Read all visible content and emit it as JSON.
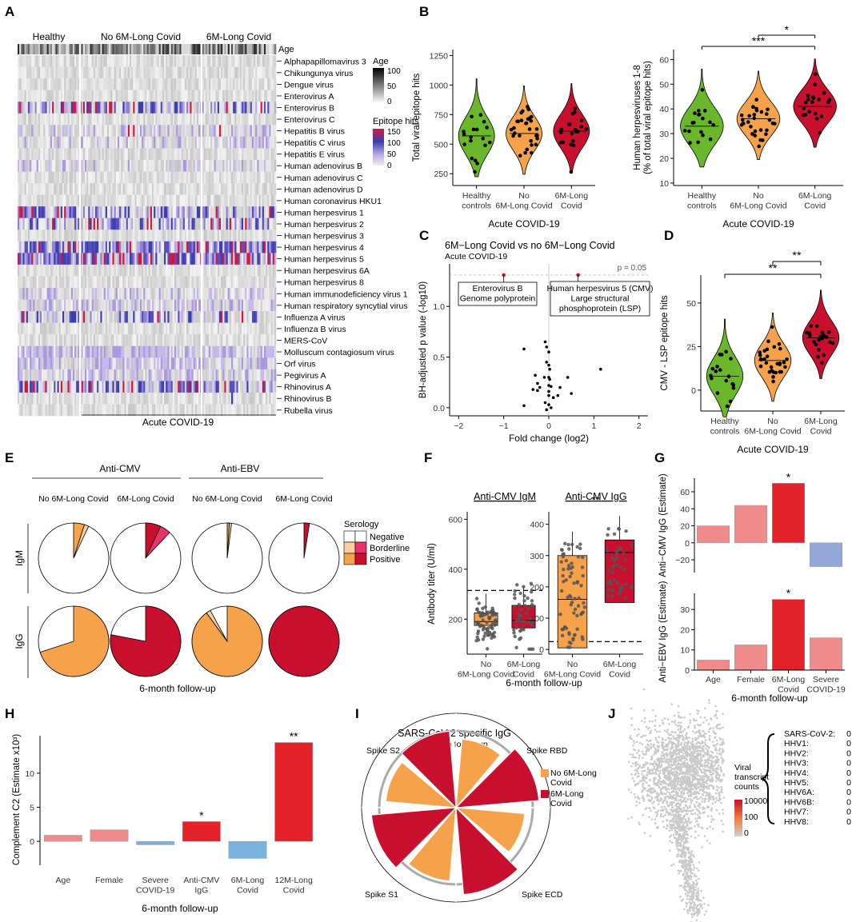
{
  "colors": {
    "green": "#6ab72c",
    "orange": "#f5a24a",
    "red": "#c8102e",
    "brightred": "#e4222a",
    "pink": "#f08b8b",
    "lightblue": "#93a8d8",
    "blue": "#7ab3e0",
    "darkred": "#c8102e",
    "pinkish": "#e7336a"
  },
  "panels": {
    "A": "A",
    "B": "B",
    "C": "C",
    "D": "D",
    "E": "E",
    "F": "F",
    "G": "G",
    "H": "H",
    "I": "I",
    "J": "J"
  },
  "chart_data": [
    {
      "id": "A",
      "type": "heatmap",
      "group_labels": [
        "Healthy",
        "No 6M-Long Covid",
        "6M-Long Covid"
      ],
      "age_label": "Age",
      "bottom_label": "Acute COVID-19",
      "rows": [
        "Alphapapillomavirus 3",
        "Chikungunya virus",
        "Dengue virus",
        "Enterovirus A",
        "Enterovirus B",
        "Enterovirus C",
        "Hepatitis B virus",
        "Hepatitis C virus",
        "Hepatitis E virus",
        "Human adenovirus B",
        "Human adenovirus C",
        "Human adenovirus D",
        "Human coronavirus HKU1",
        "Human herpesvirus 1",
        "Human herpesvirus 2",
        "Human herpesvirus 3",
        "Human herpesvirus 4",
        "Human herpesvirus 5",
        "Human herpesvirus 6A",
        "Human herpesvirus 8",
        "Human immunodeficiency virus 1",
        "Human respiratory syncytial virus",
        "Influenza A virus",
        "Influenza B virus",
        "MERS-CoV",
        "Molluscum contagiosum virus",
        "Orf virus",
        "Pegivirus A",
        "Rhinovirus A",
        "Rhinovirus B",
        "Rubella virus"
      ],
      "legend_age": {
        "title": "Age",
        "ticks": [
          "100",
          "50",
          "0"
        ]
      },
      "legend_epitope": {
        "title": "Epitope hits",
        "ticks": [
          "150",
          "100",
          "50",
          "0"
        ]
      }
    },
    {
      "id": "B1",
      "type": "violin",
      "ylabel": "Total viral epitope hits",
      "yticks": [
        "1250",
        "1000",
        "750",
        "500",
        "250"
      ],
      "ylim": [
        150,
        1300
      ],
      "categories": [
        "Healthy\ncontrols",
        "No\n6M-Long Covid",
        "6M-Long\nCovid"
      ],
      "xlabel": "Acute COVID-19",
      "medians": [
        570,
        590,
        610
      ]
    },
    {
      "id": "B2",
      "type": "violin",
      "ylabel": "Human herpesviruses 1-8\n(% of total viral epitope hits)",
      "yticks": [
        "60",
        "50",
        "40",
        "30",
        "20",
        "10"
      ],
      "ylim": [
        9,
        64
      ],
      "categories": [
        "Healthy\ncontrols",
        "No\n6M-Long Covid",
        "6M-Long\nCovid"
      ],
      "xlabel": "Acute COVID-19",
      "significance": [
        "***",
        "*"
      ],
      "medians": [
        33,
        36,
        41
      ]
    },
    {
      "id": "C",
      "type": "scatter",
      "title": "6M−Long Covid vs no 6M−Long Covid",
      "subtitle": "Acute COVID-19",
      "xlabel": "Fold change (log2)",
      "ylabel": "BH-adjusted p value (-log10)",
      "xticks": [
        "−2",
        "−1",
        "0",
        "1",
        "2"
      ],
      "yticks": [
        "0.0",
        "0.5",
        "1.0"
      ],
      "xlim": [
        -2.2,
        2.2
      ],
      "ylim": [
        -0.08,
        1.42
      ],
      "threshold_label": "p = 0.05",
      "annotations": [
        "Enterovirus B\nGenome polyprotein",
        "Human herpesvirus 5 (CMV)\nLarge structural\nphosphoprotein (LSP)"
      ],
      "points": [
        [
          -1.0,
          1.31
        ],
        [
          0.65,
          1.31
        ],
        [
          -0.55,
          0.58
        ],
        [
          -0.08,
          0.65
        ],
        [
          -0.05,
          0.6
        ],
        [
          0.0,
          0.55
        ],
        [
          -0.05,
          0.45
        ],
        [
          0.0,
          0.42
        ],
        [
          0.02,
          0.38
        ],
        [
          1.15,
          0.38
        ],
        [
          -0.3,
          0.32
        ],
        [
          -0.1,
          0.3
        ],
        [
          0.0,
          0.3
        ],
        [
          0.42,
          0.3
        ],
        [
          0.02,
          0.28
        ],
        [
          -0.25,
          0.24
        ],
        [
          0.0,
          0.22
        ],
        [
          0.05,
          0.21
        ],
        [
          -0.2,
          0.2
        ],
        [
          -0.35,
          0.18
        ],
        [
          -0.25,
          0.17
        ],
        [
          0.0,
          0.16
        ],
        [
          0.25,
          0.2
        ],
        [
          0.0,
          0.12
        ],
        [
          0.5,
          0.14
        ],
        [
          0.1,
          0.1
        ],
        [
          0.2,
          0.12
        ],
        [
          -0.08,
          0.05
        ],
        [
          0.0,
          0.03
        ],
        [
          -0.55,
          0.02
        ],
        [
          -0.05,
          -0.02
        ],
        [
          0.05,
          0.0
        ]
      ]
    },
    {
      "id": "D",
      "type": "violin",
      "ylabel": "CMV - LSP epitope hits",
      "yticks": [
        "50",
        "25",
        "0"
      ],
      "ylim": [
        -12,
        66
      ],
      "categories": [
        "Healthy\ncontrols",
        "No\n6M-Long Covid",
        "6M-Long\nCovid"
      ],
      "xlabel": "Acute COVID-19",
      "significance": [
        "**",
        "**"
      ],
      "medians": [
        8,
        17,
        30
      ]
    },
    {
      "id": "E",
      "type": "pie",
      "headers": [
        "Anti-CMV",
        "Anti-EBV"
      ],
      "subheaders": [
        "No 6M-Long Covid",
        "6M-Long Covid",
        "No 6M-Long Covid",
        "6M-Long Covid"
      ],
      "row_labels": [
        "IgM",
        "IgG"
      ],
      "xlabel": "6-month follow-up",
      "legend_title": "Serology",
      "legend_items": [
        "Negative",
        "Borderline",
        "Positive"
      ],
      "pies": [
        {
          "positive": 0.05,
          "borderline": 0.02
        },
        {
          "positive": 0.07,
          "borderline": 0.05
        },
        {
          "positive": 0.01,
          "borderline": 0.01
        },
        {
          "positive": 0.025,
          "borderline": 0.0
        },
        {
          "positive": 0.7,
          "borderline": 0.0
        },
        {
          "positive": 0.78,
          "borderline": 0.0
        },
        {
          "positive": 0.9,
          "borderline": 0.02
        },
        {
          "positive": 1.0,
          "borderline": 0.0
        }
      ]
    },
    {
      "id": "F",
      "type": "box",
      "titles": [
        "Anti-CMV IgM",
        "Anti-CMV IgG"
      ],
      "ylabel": "Antibody titer (U/ml)",
      "xlabel": "6-month follow-up",
      "categories": [
        "No\n6M-Long Covid",
        "6M-Long\nCovid"
      ],
      "igm_yticks": [
        "600",
        "400",
        "200"
      ],
      "igg_yticks": [
        "400",
        "300",
        "200",
        "100",
        "0"
      ],
      "significance": "**",
      "igm": {
        "boxes": [
          [
            175,
            190,
            225
          ],
          [
            165,
            195,
            255
          ]
        ],
        "ylim": [
          60,
          630
        ],
        "cutoff": 315
      },
      "igg": {
        "boxes": [
          [
            5,
            160,
            300
          ],
          [
            150,
            310,
            350
          ]
        ],
        "ylim": [
          -15,
          440
        ],
        "cutoff": 25
      }
    },
    {
      "id": "G",
      "type": "bar",
      "ylabels": [
        "Anti−CMV IgG (Estimate)",
        "Anti−EBV IgG (Estimate)"
      ],
      "categories": [
        "Age",
        "Female",
        "6M-Long\nCovid",
        "Severe\nCOVID-19"
      ],
      "top_values": [
        20,
        44,
        70,
        -28
      ],
      "top_yticks": [
        "60",
        "40",
        "20",
        "0",
        "−20"
      ],
      "top_ylim": [
        -35,
        76
      ],
      "bottom_values": [
        5,
        12.5,
        35,
        16
      ],
      "bottom_yticks": [
        "30",
        "20",
        "10",
        "0"
      ],
      "bottom_ylim": [
        0,
        38
      ],
      "significance": "*",
      "xlabel": "6-month follow-up"
    },
    {
      "id": "H",
      "type": "bar",
      "ylabel": "Complement C2 (Estimate x10³)",
      "categories": [
        "Age",
        "Female",
        "Severe\nCOVID-19",
        "Anti-CMV\nIgG",
        "6M-Long\nCovid",
        "12M-Long\nCovid"
      ],
      "values": [
        0.9,
        1.7,
        -0.5,
        2.9,
        -2.5,
        14.5
      ],
      "yticks": [
        "10",
        "5",
        "0"
      ],
      "ylim": [
        -3.5,
        15.5
      ],
      "significance": [
        "*",
        "**"
      ],
      "xlabel": "6-month follow-up"
    },
    {
      "id": "I",
      "type": "radial-bar",
      "title": "SARS-CoV-2 specific IgG",
      "subtitle": "6-month follow-up",
      "labels": [
        "Spike RBD",
        "Spike ECD",
        "Spike S1",
        "Spike S2"
      ],
      "legend_items": [
        "No 6M-Long Covid",
        "6M-Long Covid"
      ]
    },
    {
      "id": "J",
      "type": "scatter-umap",
      "legend_title": "Viral\ntranscript\ncounts",
      "legend_ticks": [
        "10000",
        "100",
        "0"
      ],
      "counts": [
        [
          "SARS-CoV-2:",
          "0"
        ],
        [
          "HHV1:",
          "0"
        ],
        [
          "HHV2:",
          "0"
        ],
        [
          "HHV3:",
          "0"
        ],
        [
          "HHV4:",
          "0"
        ],
        [
          "HHV5:",
          "0"
        ],
        [
          "HHV6A:",
          "0"
        ],
        [
          "HHV6B:",
          "0"
        ],
        [
          "HHV7:",
          "0"
        ],
        [
          "HHV8:",
          "0"
        ]
      ]
    }
  ]
}
